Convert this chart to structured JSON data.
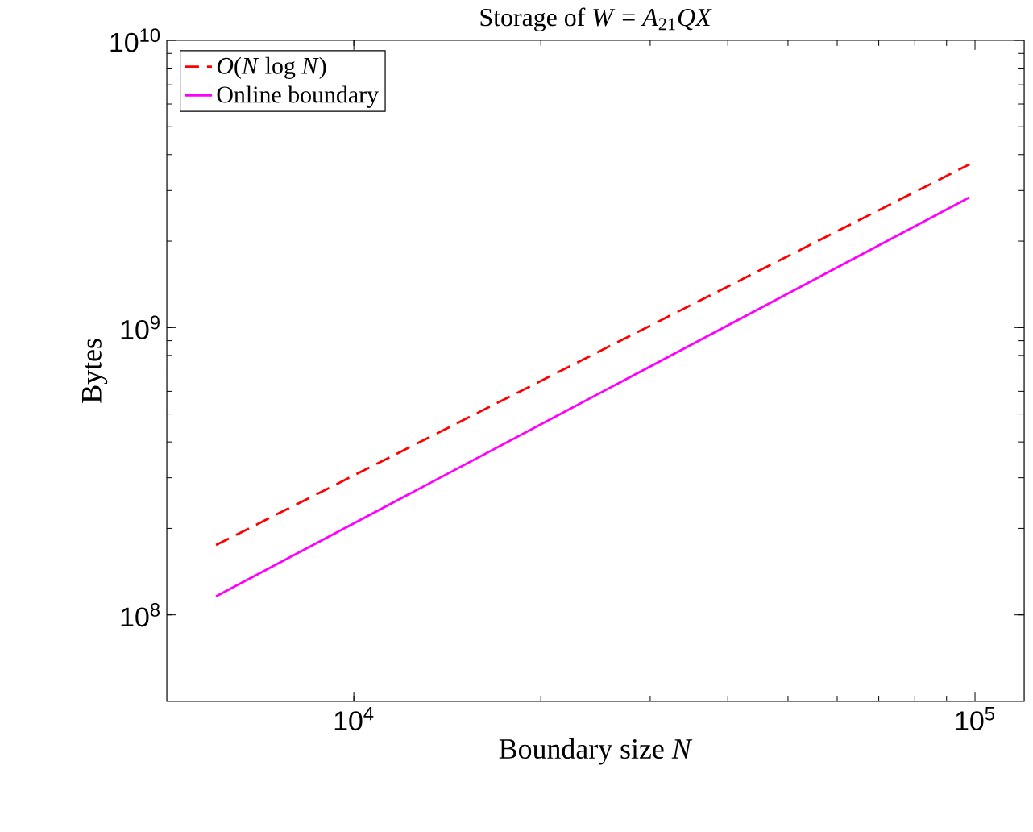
{
  "chart_data": {
    "type": "line",
    "title": "Storage of *W* = *A*$_{21}$*QX*",
    "xlabel": "Boundary size *N*",
    "ylabel": "Bytes",
    "log": "xy",
    "legend": "top left",
    "xlim": [
      5000,
      120000
    ],
    "xticks": [
      {
        "value": 10000,
        "label": "10$^{4}$"
      },
      {
        "value": 100000,
        "label": "10$^{5}$"
      }
    ],
    "ylim": [
      50000000,
      10000000000
    ],
    "yticks": [
      {
        "value": 100000000,
        "label": "10$^{8}$"
      },
      {
        "value": 1000000000,
        "label": "10$^{9}$"
      },
      {
        "value": 10000000000,
        "label": "10$^{10}$"
      }
    ],
    "x": [
      6000,
      98000
    ],
    "series": [
      {
        "name": "*O*(*N* log *N*)",
        "color": "#ff0000",
        "line_style": "dashed",
        "values": [
          175000000,
          3700000000
        ]
      },
      {
        "name": "Online boundary",
        "color": "#ff00ff",
        "line_style": "solid",
        "values": [
          116000000,
          2840000000
        ]
      }
    ]
  }
}
